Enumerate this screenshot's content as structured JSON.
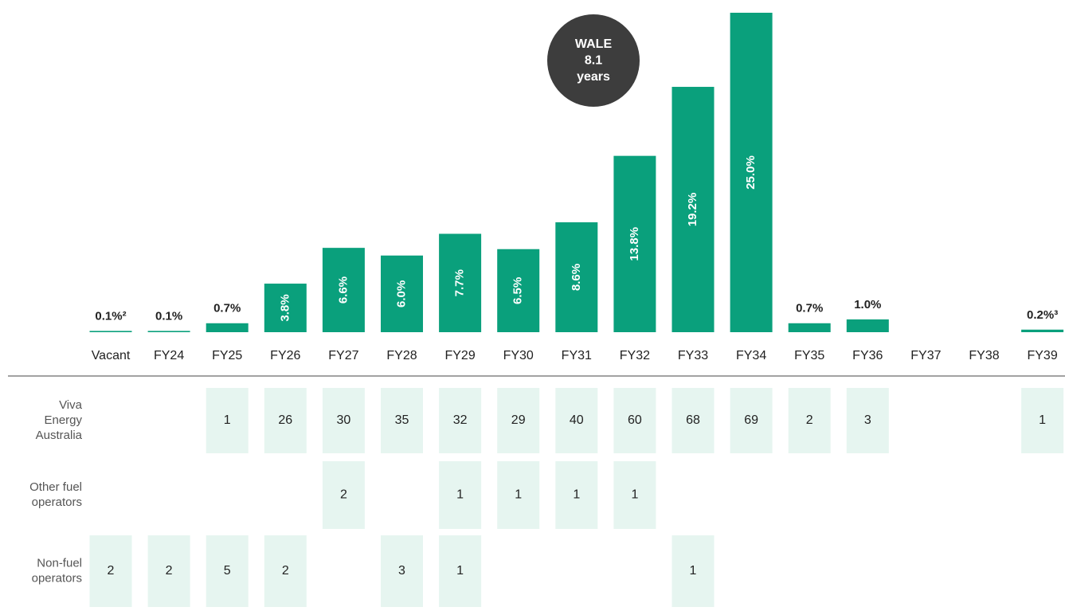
{
  "chart_data": {
    "type": "bar",
    "categories": [
      "Vacant",
      "FY24",
      "FY25",
      "FY26",
      "FY27",
      "FY28",
      "FY29",
      "FY30",
      "FY31",
      "FY32",
      "FY33",
      "FY34",
      "FY35",
      "FY36",
      "FY37",
      "FY38",
      "FY39"
    ],
    "values": [
      0.1,
      0.1,
      0.7,
      3.8,
      6.6,
      6.0,
      7.7,
      6.5,
      8.6,
      13.8,
      19.2,
      25.0,
      0.7,
      1.0,
      null,
      null,
      0.2
    ],
    "value_labels": [
      "0.1%²",
      "0.1%",
      "0.7%",
      "3.8%",
      "6.6%",
      "6.0%",
      "7.7%",
      "6.5%",
      "8.6%",
      "13.8%",
      "19.2%",
      "25.0%",
      "0.7%",
      "1.0%",
      null,
      null,
      "0.2%³"
    ],
    "color": "#0aa07c",
    "ylim": [
      0,
      25
    ],
    "annotation": [
      "WALE",
      "8.1",
      "years"
    ]
  },
  "table": {
    "rows": [
      {
        "label": [
          "Viva",
          "Energy",
          "Australia"
        ],
        "cells": [
          null,
          null,
          1,
          26,
          30,
          35,
          32,
          29,
          40,
          60,
          68,
          69,
          2,
          3,
          null,
          null,
          1
        ]
      },
      {
        "label": [
          "Other fuel",
          "operators"
        ],
        "cells": [
          null,
          null,
          null,
          null,
          2,
          null,
          1,
          1,
          1,
          1,
          null,
          null,
          null,
          null,
          null,
          null,
          null
        ]
      },
      {
        "label": [
          "Non-fuel",
          "operators"
        ],
        "cells": [
          2,
          2,
          5,
          2,
          null,
          3,
          1,
          null,
          null,
          null,
          1,
          null,
          null,
          null,
          null,
          null,
          null
        ]
      }
    ]
  }
}
